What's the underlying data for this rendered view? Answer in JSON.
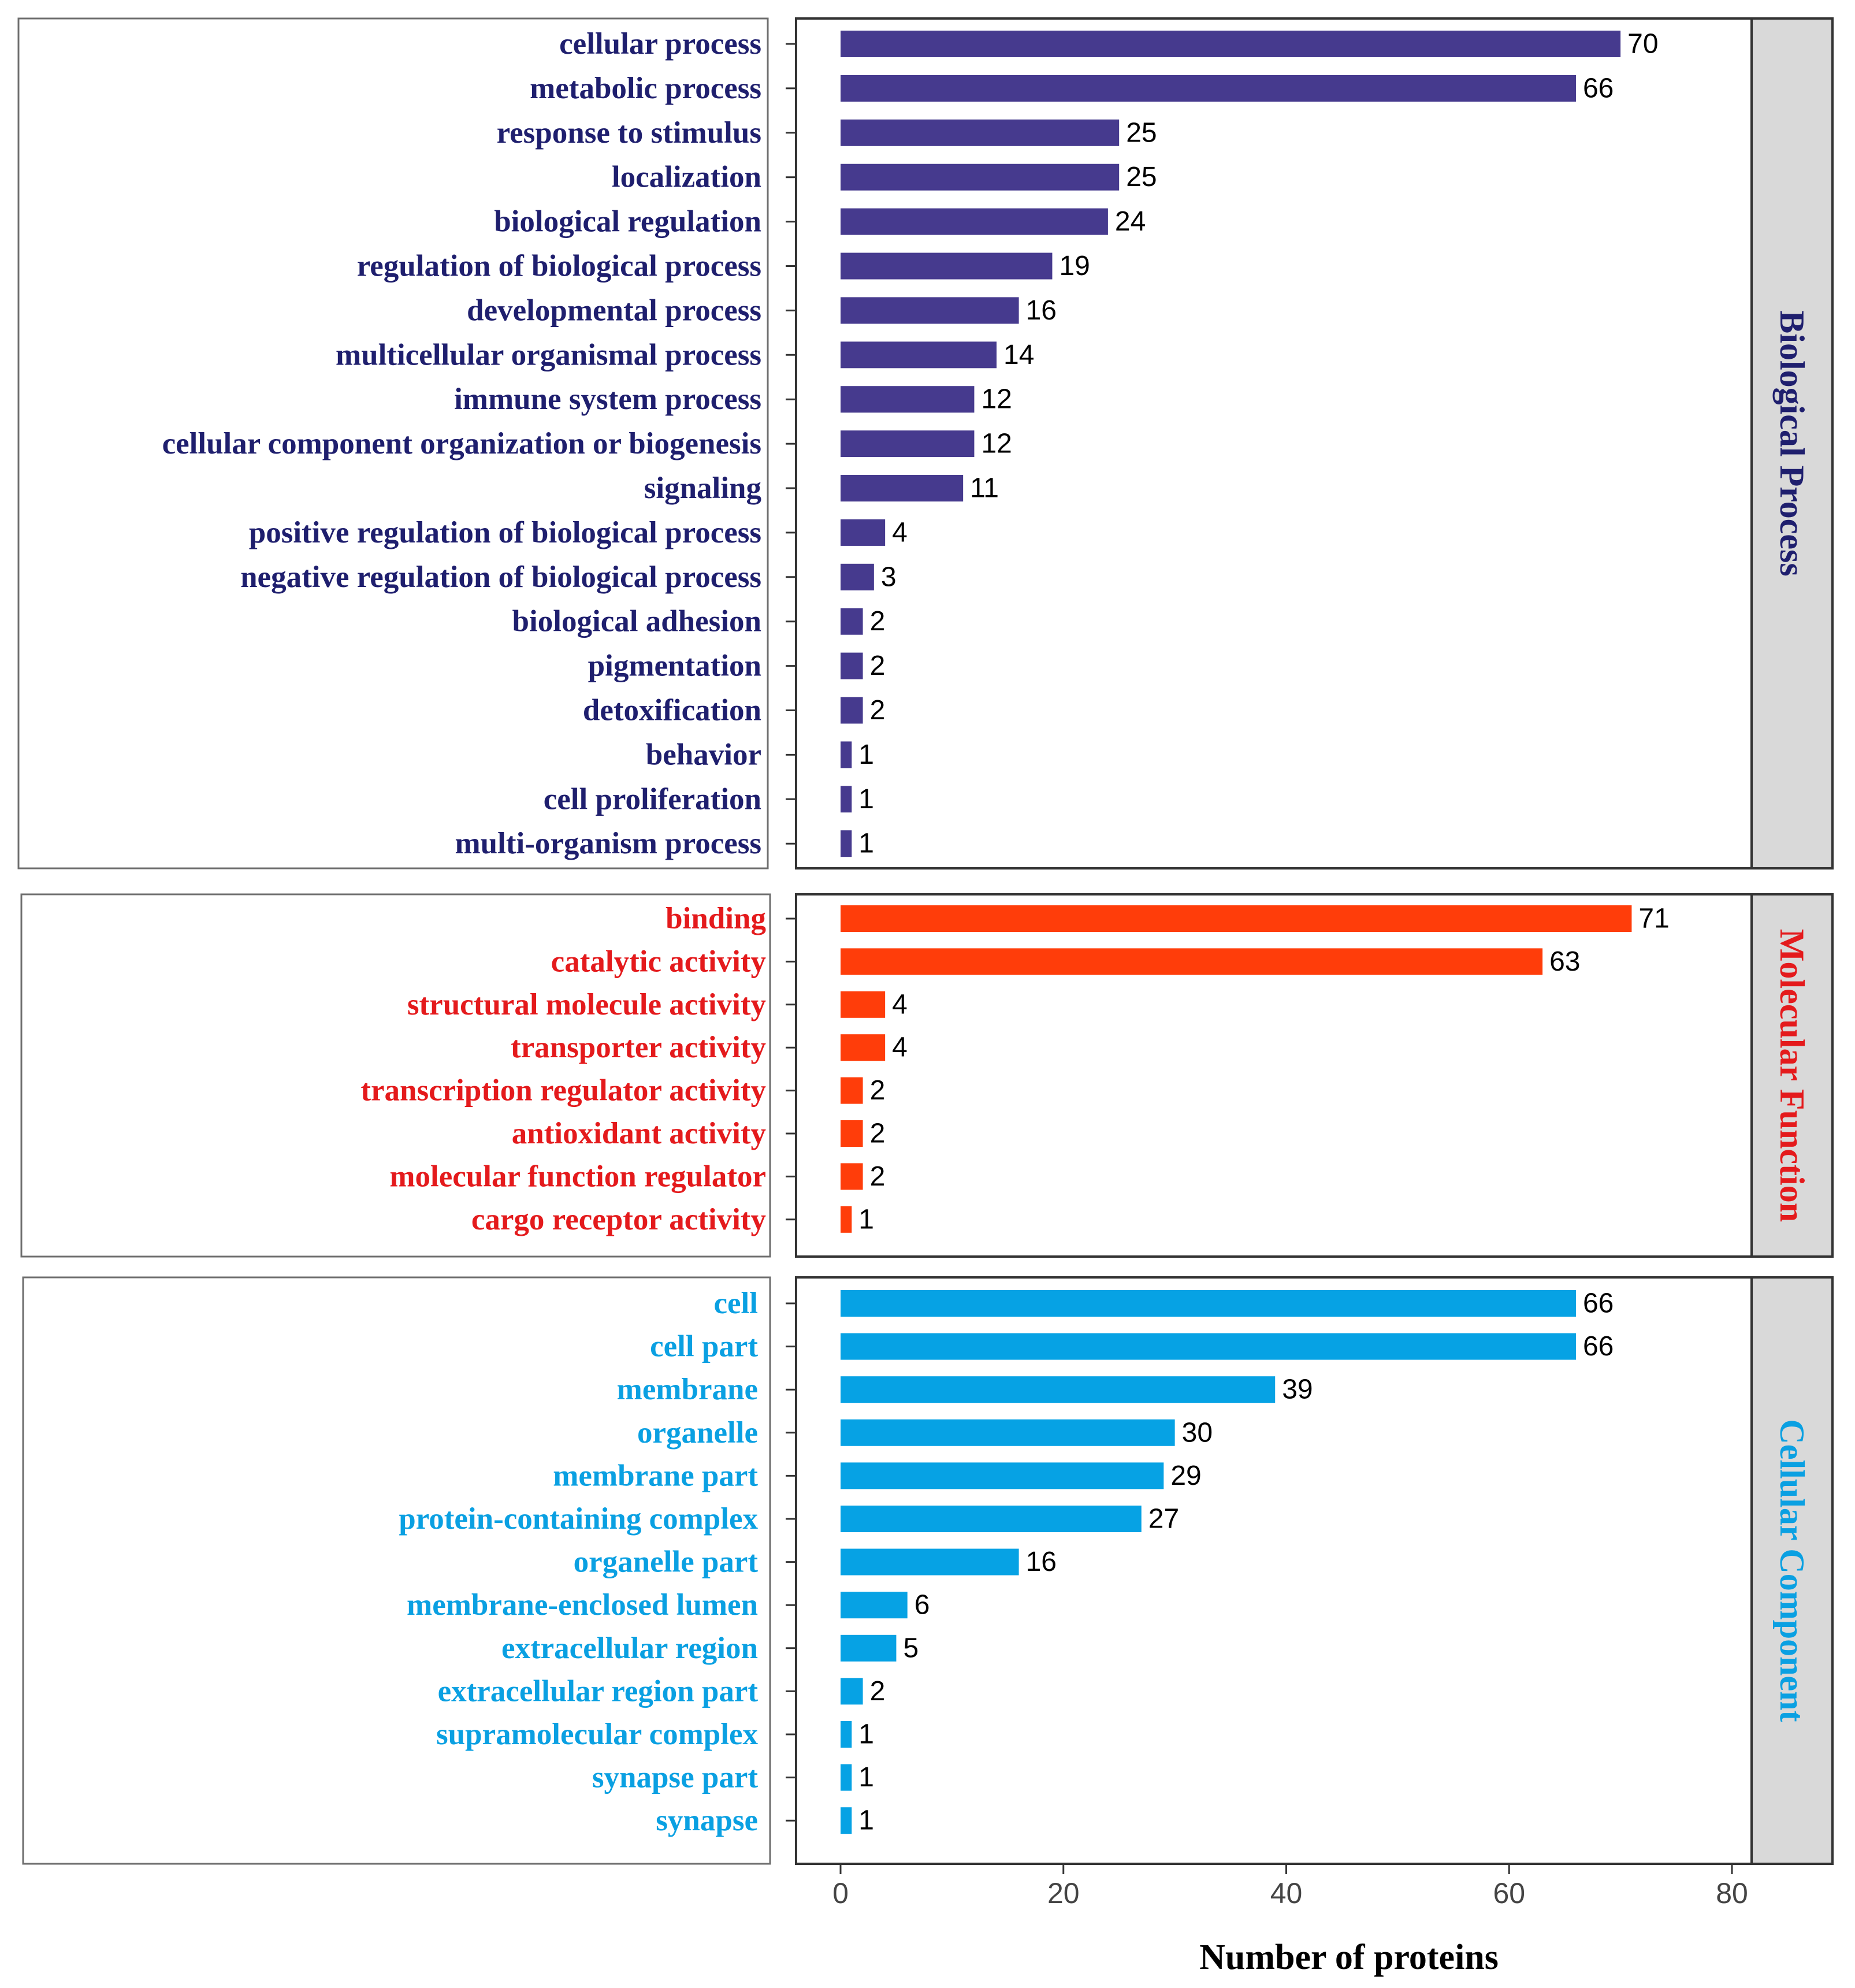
{
  "chart_data": {
    "type": "bar",
    "orientation": "horizontal",
    "xlabel": "Number of proteins",
    "xlim": [
      0,
      80
    ],
    "xticks": [
      0,
      20,
      40,
      60,
      80
    ],
    "panels": [
      {
        "name": "Biological Process",
        "color": "#463a8e",
        "label_color": "#1f1f6e",
        "categories": [
          "cellular process",
          "metabolic process",
          "response to stimulus",
          "localization",
          "biological regulation",
          "regulation of biological process",
          "developmental process",
          "multicellular organismal process",
          "immune system process",
          "cellular component organization or biogenesis",
          "signaling",
          "positive regulation of biological process",
          "negative regulation of biological process",
          "biological adhesion",
          "pigmentation",
          "detoxification",
          "behavior",
          "cell proliferation",
          "multi-organism process"
        ],
        "values": [
          70,
          66,
          25,
          25,
          24,
          19,
          16,
          14,
          12,
          12,
          11,
          4,
          3,
          2,
          2,
          2,
          1,
          1,
          1
        ]
      },
      {
        "name": "Molecular Function",
        "color": "#ff3d0a",
        "label_color": "#e41a1c",
        "categories": [
          "binding",
          "catalytic activity",
          "structural molecule activity",
          "transporter activity",
          "transcription regulator activity",
          "antioxidant activity",
          "molecular function regulator",
          "cargo receptor activity"
        ],
        "values": [
          71,
          63,
          4,
          4,
          2,
          2,
          2,
          1
        ]
      },
      {
        "name": "Cellular Component",
        "color": "#06a2e4",
        "label_color": "#0aa0e2",
        "categories": [
          "cell",
          "cell part",
          "membrane",
          "organelle",
          "membrane part",
          "protein-containing complex",
          "organelle part",
          "membrane-enclosed lumen",
          "extracellular region",
          "extracellular region part",
          "supramolecular complex",
          "synapse part",
          "synapse"
        ],
        "values": [
          66,
          66,
          39,
          30,
          29,
          27,
          16,
          6,
          5,
          2,
          1,
          1,
          1
        ]
      }
    ]
  }
}
